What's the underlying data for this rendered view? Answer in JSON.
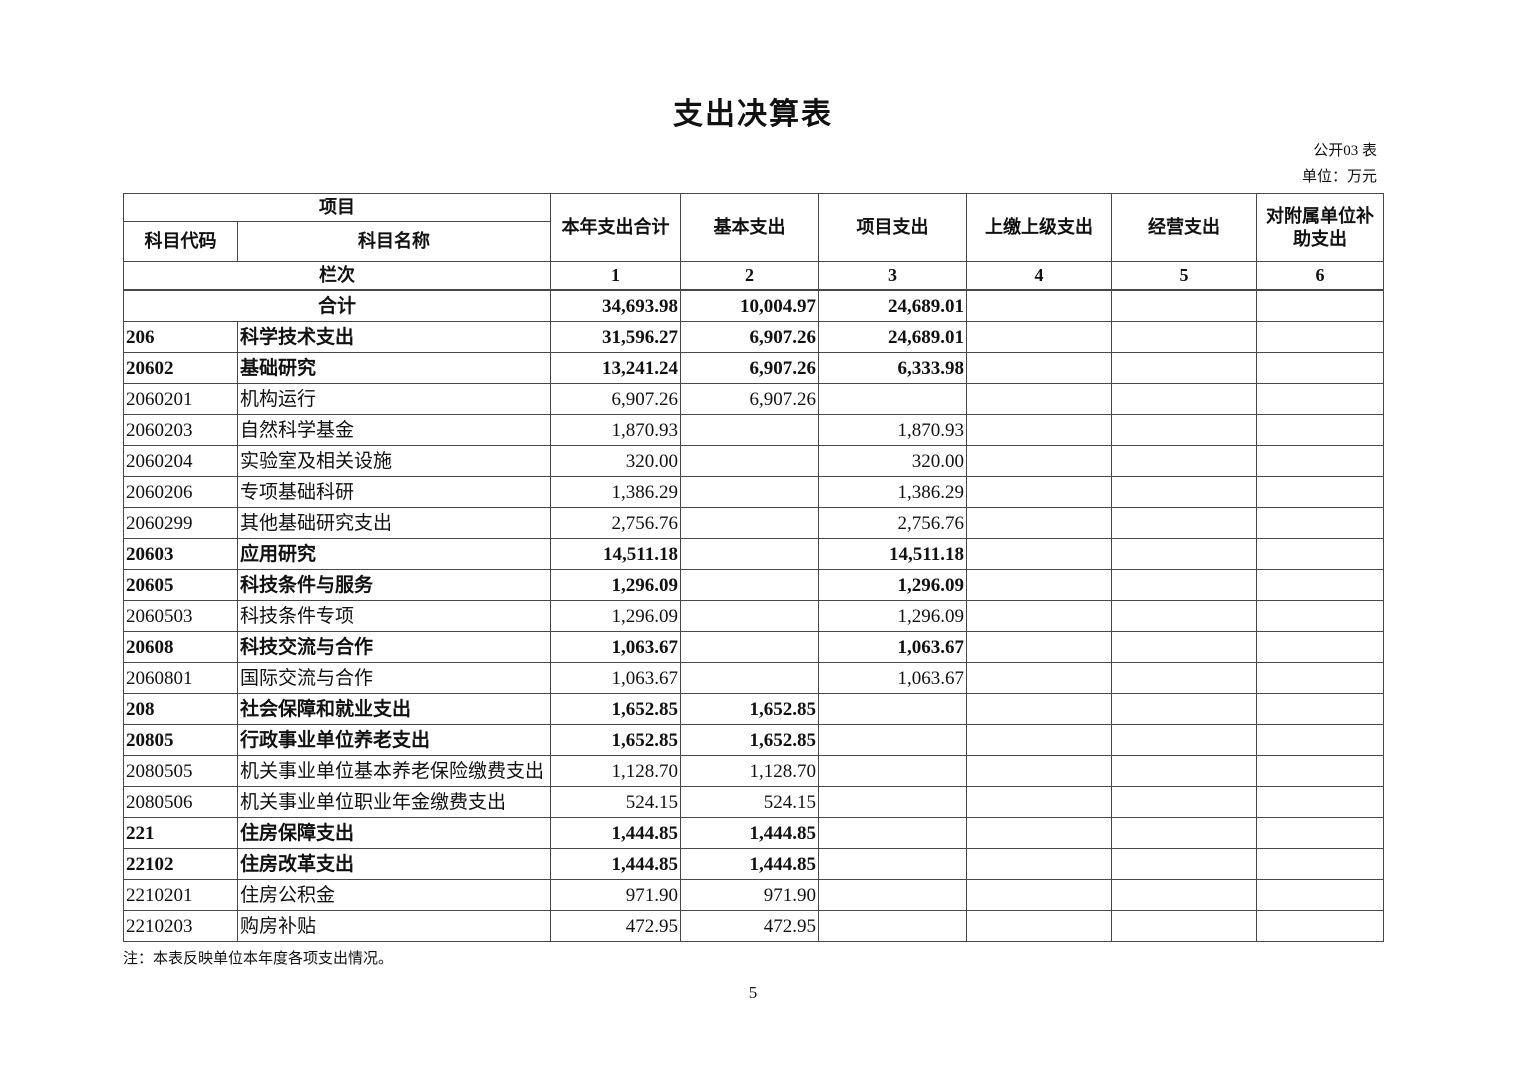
{
  "page": {
    "title": "支出决算表",
    "form_label": "公开03 表",
    "unit_label": "单位：万元",
    "note": "注：本表反映单位本年度各项支出情况。",
    "page_number": "5"
  },
  "colors": {
    "background": "#ffffff",
    "text": "#111111",
    "border": "#474747"
  },
  "table": {
    "header": {
      "project_group": "项目",
      "code": "科目代码",
      "name": "科目名称",
      "columns": [
        "本年支出合计",
        "基本支出",
        "项目支出",
        "上缴上级支出",
        "经营支出",
        "对附属单位补助支出"
      ]
    },
    "column_index_row": {
      "label": "栏次",
      "indexes": [
        "1",
        "2",
        "3",
        "4",
        "5",
        "6"
      ]
    },
    "total_row": {
      "label": "合计",
      "values": [
        "34,693.98",
        "10,004.97",
        "24,689.01",
        "",
        "",
        ""
      ]
    },
    "rows": [
      {
        "code": "206",
        "name": "科学技术支出",
        "bold": true,
        "values": [
          "31,596.27",
          "6,907.26",
          "24,689.01",
          "",
          "",
          ""
        ]
      },
      {
        "code": "20602",
        "name": "基础研究",
        "bold": true,
        "values": [
          "13,241.24",
          "6,907.26",
          "6,333.98",
          "",
          "",
          ""
        ]
      },
      {
        "code": "2060201",
        "name": "机构运行",
        "bold": false,
        "values": [
          "6,907.26",
          "6,907.26",
          "",
          "",
          "",
          ""
        ]
      },
      {
        "code": "2060203",
        "name": "自然科学基金",
        "bold": false,
        "values": [
          "1,870.93",
          "",
          "1,870.93",
          "",
          "",
          ""
        ]
      },
      {
        "code": "2060204",
        "name": "实验室及相关设施",
        "bold": false,
        "values": [
          "320.00",
          "",
          "320.00",
          "",
          "",
          ""
        ]
      },
      {
        "code": "2060206",
        "name": "专项基础科研",
        "bold": false,
        "values": [
          "1,386.29",
          "",
          "1,386.29",
          "",
          "",
          ""
        ]
      },
      {
        "code": "2060299",
        "name": "其他基础研究支出",
        "bold": false,
        "values": [
          "2,756.76",
          "",
          "2,756.76",
          "",
          "",
          ""
        ]
      },
      {
        "code": "20603",
        "name": "应用研究",
        "bold": true,
        "values": [
          "14,511.18",
          "",
          "14,511.18",
          "",
          "",
          ""
        ]
      },
      {
        "code": "20605",
        "name": "科技条件与服务",
        "bold": true,
        "values": [
          "1,296.09",
          "",
          "1,296.09",
          "",
          "",
          ""
        ]
      },
      {
        "code": "2060503",
        "name": "科技条件专项",
        "bold": false,
        "values": [
          "1,296.09",
          "",
          "1,296.09",
          "",
          "",
          ""
        ]
      },
      {
        "code": "20608",
        "name": "科技交流与合作",
        "bold": true,
        "values": [
          "1,063.67",
          "",
          "1,063.67",
          "",
          "",
          ""
        ]
      },
      {
        "code": "2060801",
        "name": "国际交流与合作",
        "bold": false,
        "values": [
          "1,063.67",
          "",
          "1,063.67",
          "",
          "",
          ""
        ]
      },
      {
        "code": "208",
        "name": "社会保障和就业支出",
        "bold": true,
        "values": [
          "1,652.85",
          "1,652.85",
          "",
          "",
          "",
          ""
        ]
      },
      {
        "code": "20805",
        "name": "行政事业单位养老支出",
        "bold": true,
        "values": [
          "1,652.85",
          "1,652.85",
          "",
          "",
          "",
          ""
        ]
      },
      {
        "code": "2080505",
        "name": "机关事业单位基本养老保险缴费支出",
        "bold": false,
        "values": [
          "1,128.70",
          "1,128.70",
          "",
          "",
          "",
          ""
        ]
      },
      {
        "code": "2080506",
        "name": "机关事业单位职业年金缴费支出",
        "bold": false,
        "values": [
          "524.15",
          "524.15",
          "",
          "",
          "",
          ""
        ]
      },
      {
        "code": "221",
        "name": "住房保障支出",
        "bold": true,
        "values": [
          "1,444.85",
          "1,444.85",
          "",
          "",
          "",
          ""
        ]
      },
      {
        "code": "22102",
        "name": "住房改革支出",
        "bold": true,
        "values": [
          "1,444.85",
          "1,444.85",
          "",
          "",
          "",
          ""
        ]
      },
      {
        "code": "2210201",
        "name": "住房公积金",
        "bold": false,
        "values": [
          "971.90",
          "971.90",
          "",
          "",
          "",
          ""
        ]
      },
      {
        "code": "2210203",
        "name": "购房补贴",
        "bold": false,
        "values": [
          "472.95",
          "472.95",
          "",
          "",
          "",
          ""
        ]
      }
    ]
  }
}
